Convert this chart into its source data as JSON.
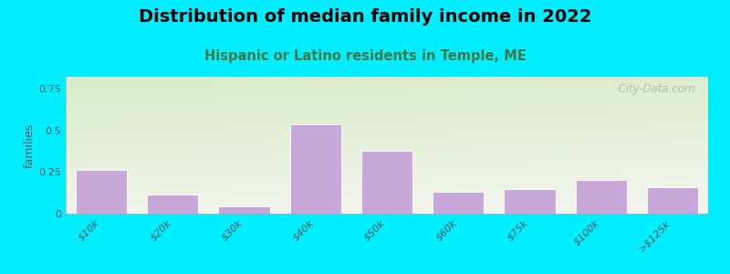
{
  "categories": [
    "$10k",
    "$20k",
    "$30k",
    "$40k",
    "$50k",
    "$60k",
    "$75k",
    "$100k",
    ">$125k"
  ],
  "values": [
    0.265,
    0.115,
    0.045,
    0.535,
    0.375,
    0.13,
    0.145,
    0.205,
    0.16
  ],
  "bar_color": "#c8a8d8",
  "bar_edge_color": "#ffffff",
  "title": "Distribution of median family income in 2022",
  "subtitle": "Hispanic or Latino residents in Temple, ME",
  "ylabel": "families",
  "ylim": [
    0,
    0.82
  ],
  "yticks": [
    0,
    0.25,
    0.5,
    0.75
  ],
  "background_outer": "#00eeff",
  "background_plot_top_left": "#d8ecc8",
  "background_plot_bottom_right": "#f5f5f0",
  "title_fontsize": 14,
  "subtitle_fontsize": 10.5,
  "subtitle_color": "#447744",
  "watermark": "  City-Data.com",
  "tick_color": "#555555",
  "bar_width": 0.72
}
